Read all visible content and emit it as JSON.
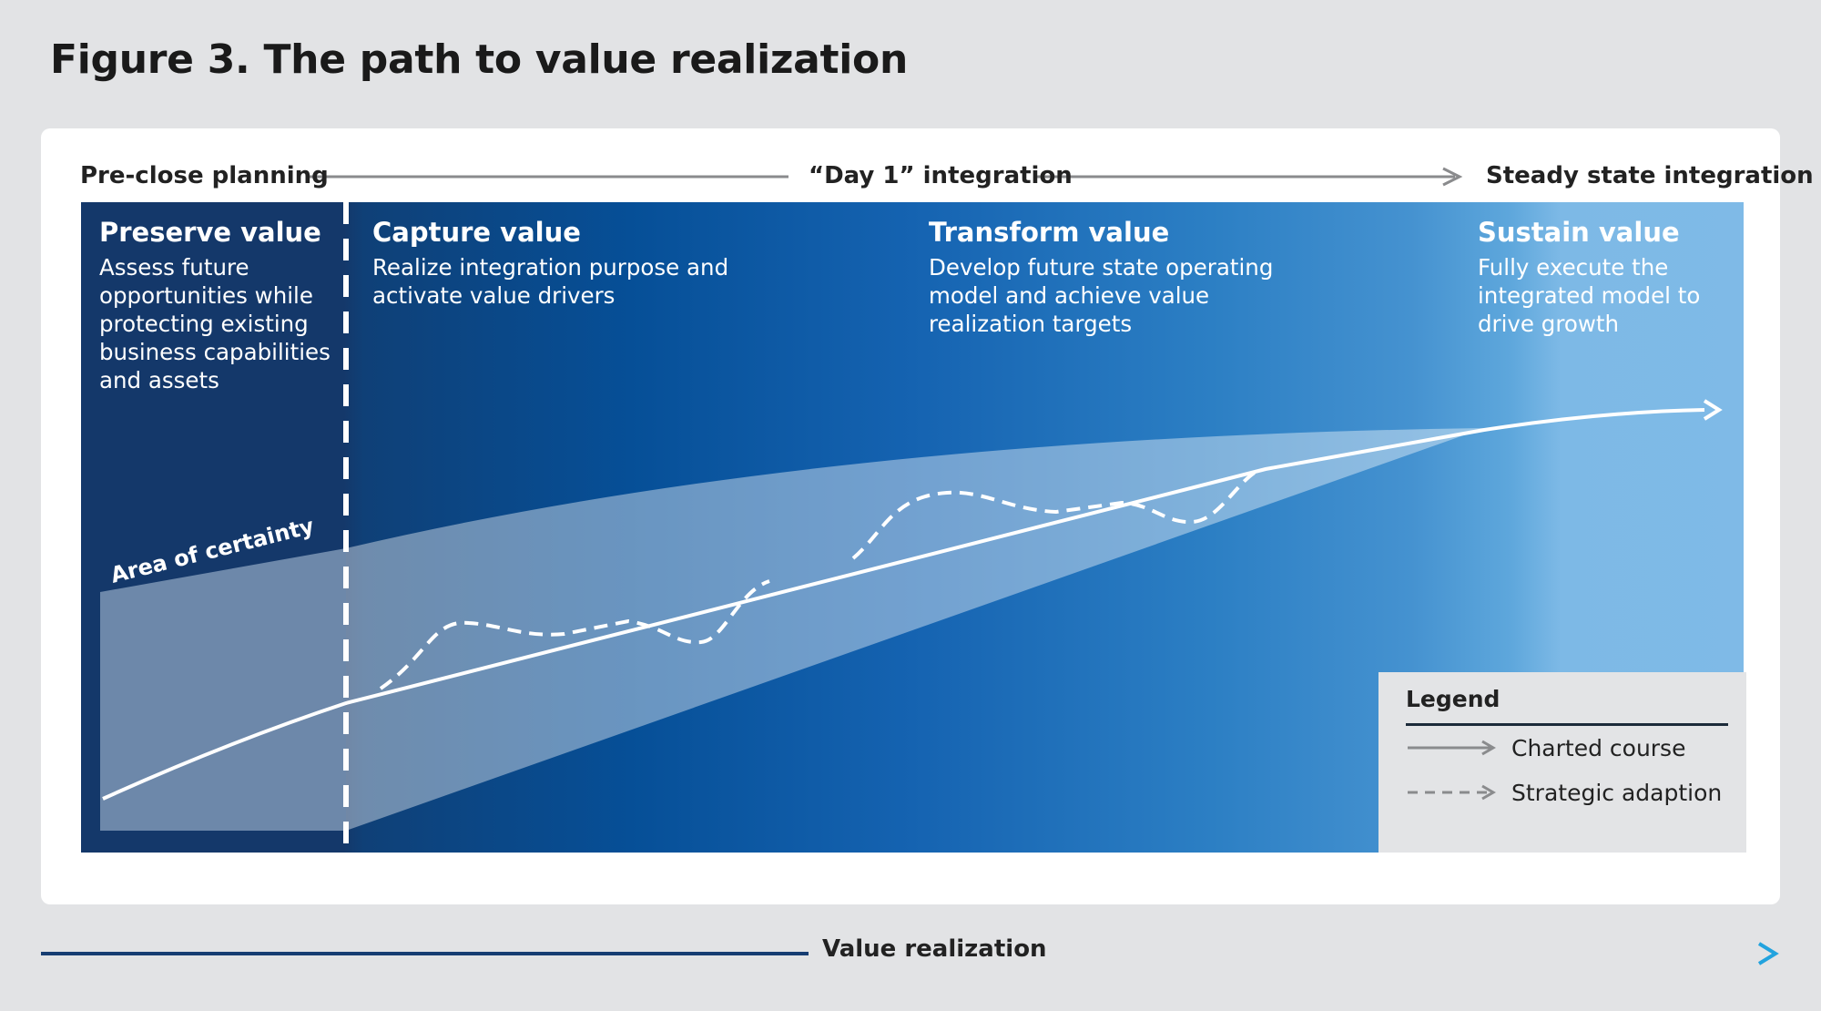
{
  "title": "Figure 3. The path to value realization",
  "phases": {
    "pre_close": "Pre-close planning",
    "day1": "“Day 1” integration",
    "steady": "Steady state integration"
  },
  "columns": [
    {
      "heading": "Preserve value",
      "text": "Assess future opportunities while protecting existing business capabilities and assets"
    },
    {
      "heading": "Capture value",
      "text": "Realize integration purpose and activate value drivers"
    },
    {
      "heading": "Transform value",
      "text": "Develop future state operating model and achieve value realization targets"
    },
    {
      "heading": "Sustain value",
      "text": "Fully execute the integrated model to drive growth"
    }
  ],
  "area_label": "Area of certainty",
  "legend": {
    "title": "Legend",
    "items": [
      {
        "label": "Charted course",
        "style": "solid"
      },
      {
        "label": "Strategic adaption",
        "style": "dashed"
      }
    ]
  },
  "bottom_axis": {
    "label": "Value realization"
  },
  "colors": {
    "background": "#e2e3e5",
    "panel_dark": "#14386a",
    "panel_mid": "#064f97",
    "panel_light": "#7fbae7",
    "axis_start": "#143a6e",
    "axis_end": "#22a3de",
    "legend_bg": "#e3e4e6"
  }
}
